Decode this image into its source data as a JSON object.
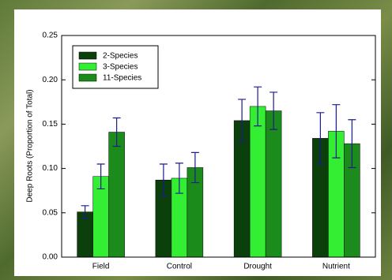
{
  "chart_data": {
    "type": "bar",
    "y_label": "Deep Roots (Proportion of Total)",
    "categories": [
      "Field",
      "Control",
      "Drought",
      "Nutrient"
    ],
    "series": [
      {
        "name": "2-Species",
        "color": "#0b3f0b",
        "values": [
          0.051,
          0.087,
          0.154,
          0.134
        ],
        "errors": [
          0.007,
          0.018,
          0.024,
          0.029
        ]
      },
      {
        "name": "3-Species",
        "color": "#33ee33",
        "values": [
          0.091,
          0.089,
          0.17,
          0.142
        ],
        "errors": [
          0.014,
          0.017,
          0.022,
          0.03
        ]
      },
      {
        "name": "11-Species",
        "color": "#1b8c1b",
        "values": [
          0.141,
          0.101,
          0.165,
          0.128
        ],
        "errors": [
          0.016,
          0.017,
          0.021,
          0.027
        ]
      }
    ],
    "error_color": "#1c1c8c",
    "ylim": [
      0,
      0.25
    ],
    "yticks": [
      {
        "value": 0,
        "label": "0.00"
      },
      {
        "value": 0.05,
        "label": "0.05"
      },
      {
        "value": 0.1,
        "label": "0.10"
      },
      {
        "value": 0.15,
        "label": "0.15"
      },
      {
        "value": 0.2,
        "label": "0.20"
      },
      {
        "value": 0.25,
        "label": "0.25"
      }
    ],
    "legend": "upper-left"
  }
}
